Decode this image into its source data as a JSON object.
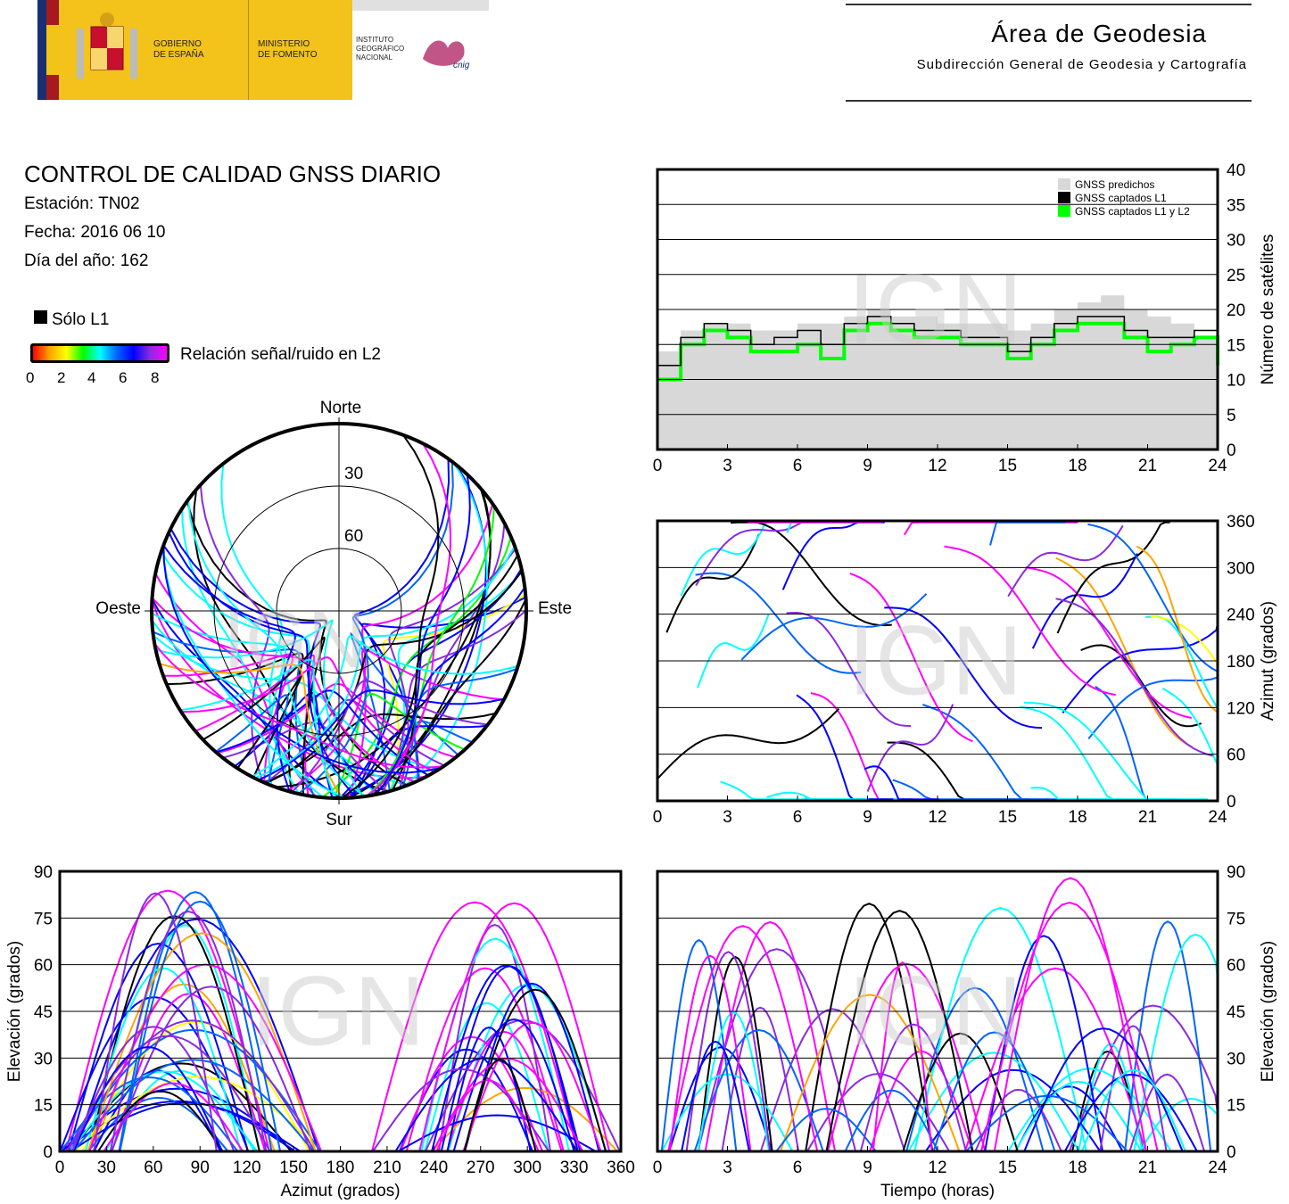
{
  "header": {
    "gov_line1": "GOBIERNO",
    "gov_line2": "DE ESPAÑA",
    "min_line1": "MINISTERIO",
    "min_line2": "DE FOMENTO",
    "ign_line1": "INSTITUTO",
    "ign_line2": "GEOGRÁFICO",
    "ign_line3": "NACIONAL",
    "cnig": "cnig",
    "area_title": "Área de Geodesia",
    "area_subtitle": "Subdirección General de Geodesia y Cartografía"
  },
  "info": {
    "title": "CONTROL DE CALIDAD GNSS DIARIO",
    "station": "Estación: TN02",
    "date": "Fecha: 2016 06 10",
    "doy": "Día del año: 162",
    "legend_l1": "Sólo L1",
    "snr_label": "Relación señal/ruido en L2",
    "snr_ticks": [
      "0",
      "2",
      "4",
      "6",
      "8"
    ]
  },
  "colors": {
    "predicted": "#d8d8d8",
    "l1": "#000000",
    "l1l2": "#00ff00",
    "snr_gradient": [
      "#ff0000",
      "#ffa500",
      "#ffff00",
      "#00ff00",
      "#00ffff",
      "#0064ff",
      "#0000ff",
      "#8a2be2",
      "#ff00ff"
    ]
  },
  "watermark": "IGN",
  "polar": {
    "north": "Norte",
    "south": "Sur",
    "east": "Este",
    "west": "Oeste",
    "ring30": "30",
    "ring60": "60"
  },
  "chart_data": [
    {
      "type": "area",
      "ylabel": "Número de satélites",
      "ylim": [
        0,
        40
      ],
      "yticks": [
        "0",
        "5",
        "10",
        "15",
        "20",
        "25",
        "30",
        "35",
        "40"
      ],
      "xlim": [
        0,
        24
      ],
      "xticks": [
        "0",
        "3",
        "6",
        "9",
        "12",
        "15",
        "18",
        "21",
        "24"
      ],
      "grid": true,
      "legend_position": "top-right",
      "legend": [
        "GNSS predichos",
        "GNSS captados L1",
        "GNSS captados L1 y L2"
      ],
      "x": [
        0,
        1,
        2,
        3,
        4,
        5,
        6,
        7,
        8,
        9,
        10,
        11,
        12,
        13,
        14,
        15,
        16,
        17,
        18,
        19,
        20,
        21,
        22,
        23,
        24
      ],
      "series": [
        {
          "name": "GNSS predichos",
          "values": [
            14,
            17,
            18,
            18,
            17,
            17,
            18,
            18,
            19,
            20,
            19,
            19,
            18,
            18,
            18,
            17,
            18,
            20,
            21,
            22,
            20,
            19,
            18,
            16,
            15
          ]
        },
        {
          "name": "GNSS captados L1",
          "values": [
            12,
            16,
            18,
            17,
            15,
            16,
            17,
            15,
            18,
            19,
            18,
            17,
            17,
            16,
            16,
            14,
            16,
            18,
            19,
            19,
            17,
            16,
            16,
            17,
            14
          ]
        },
        {
          "name": "GNSS captados L1 y L2",
          "values": [
            10,
            15,
            17,
            16,
            14,
            14,
            15,
            13,
            17,
            18,
            17,
            16,
            16,
            15,
            15,
            13,
            15,
            17,
            18,
            18,
            16,
            14,
            15,
            16,
            12
          ]
        }
      ]
    },
    {
      "type": "line",
      "ylabel": "Azimut (grados)",
      "ylim": [
        0,
        360
      ],
      "yticks": [
        "0",
        "60",
        "120",
        "180",
        "240",
        "300",
        "360"
      ],
      "xlim": [
        0,
        24
      ],
      "xticks": [
        "0",
        "3",
        "6",
        "9",
        "12",
        "15",
        "18",
        "21",
        "24"
      ],
      "grid": true
    },
    {
      "type": "line",
      "xlabel": "Azimut (grados)",
      "ylabel": "Elevación (grados)",
      "xlim": [
        0,
        360
      ],
      "ylim": [
        0,
        90
      ],
      "xticks": [
        "0",
        "30",
        "60",
        "90",
        "120",
        "150",
        "180",
        "210",
        "240",
        "270",
        "300",
        "330",
        "360"
      ],
      "yticks": [
        "0",
        "15",
        "30",
        "45",
        "60",
        "75",
        "90"
      ],
      "grid": true
    },
    {
      "type": "line",
      "xlabel": "Tiempo (horas)",
      "ylabel": "Elevación (grados)",
      "xlim": [
        0,
        24
      ],
      "ylim": [
        0,
        90
      ],
      "xticks": [
        "0",
        "3",
        "6",
        "9",
        "12",
        "15",
        "18",
        "21",
        "24"
      ],
      "yticks": [
        "0",
        "15",
        "30",
        "45",
        "60",
        "75",
        "90"
      ],
      "grid": true
    }
  ]
}
